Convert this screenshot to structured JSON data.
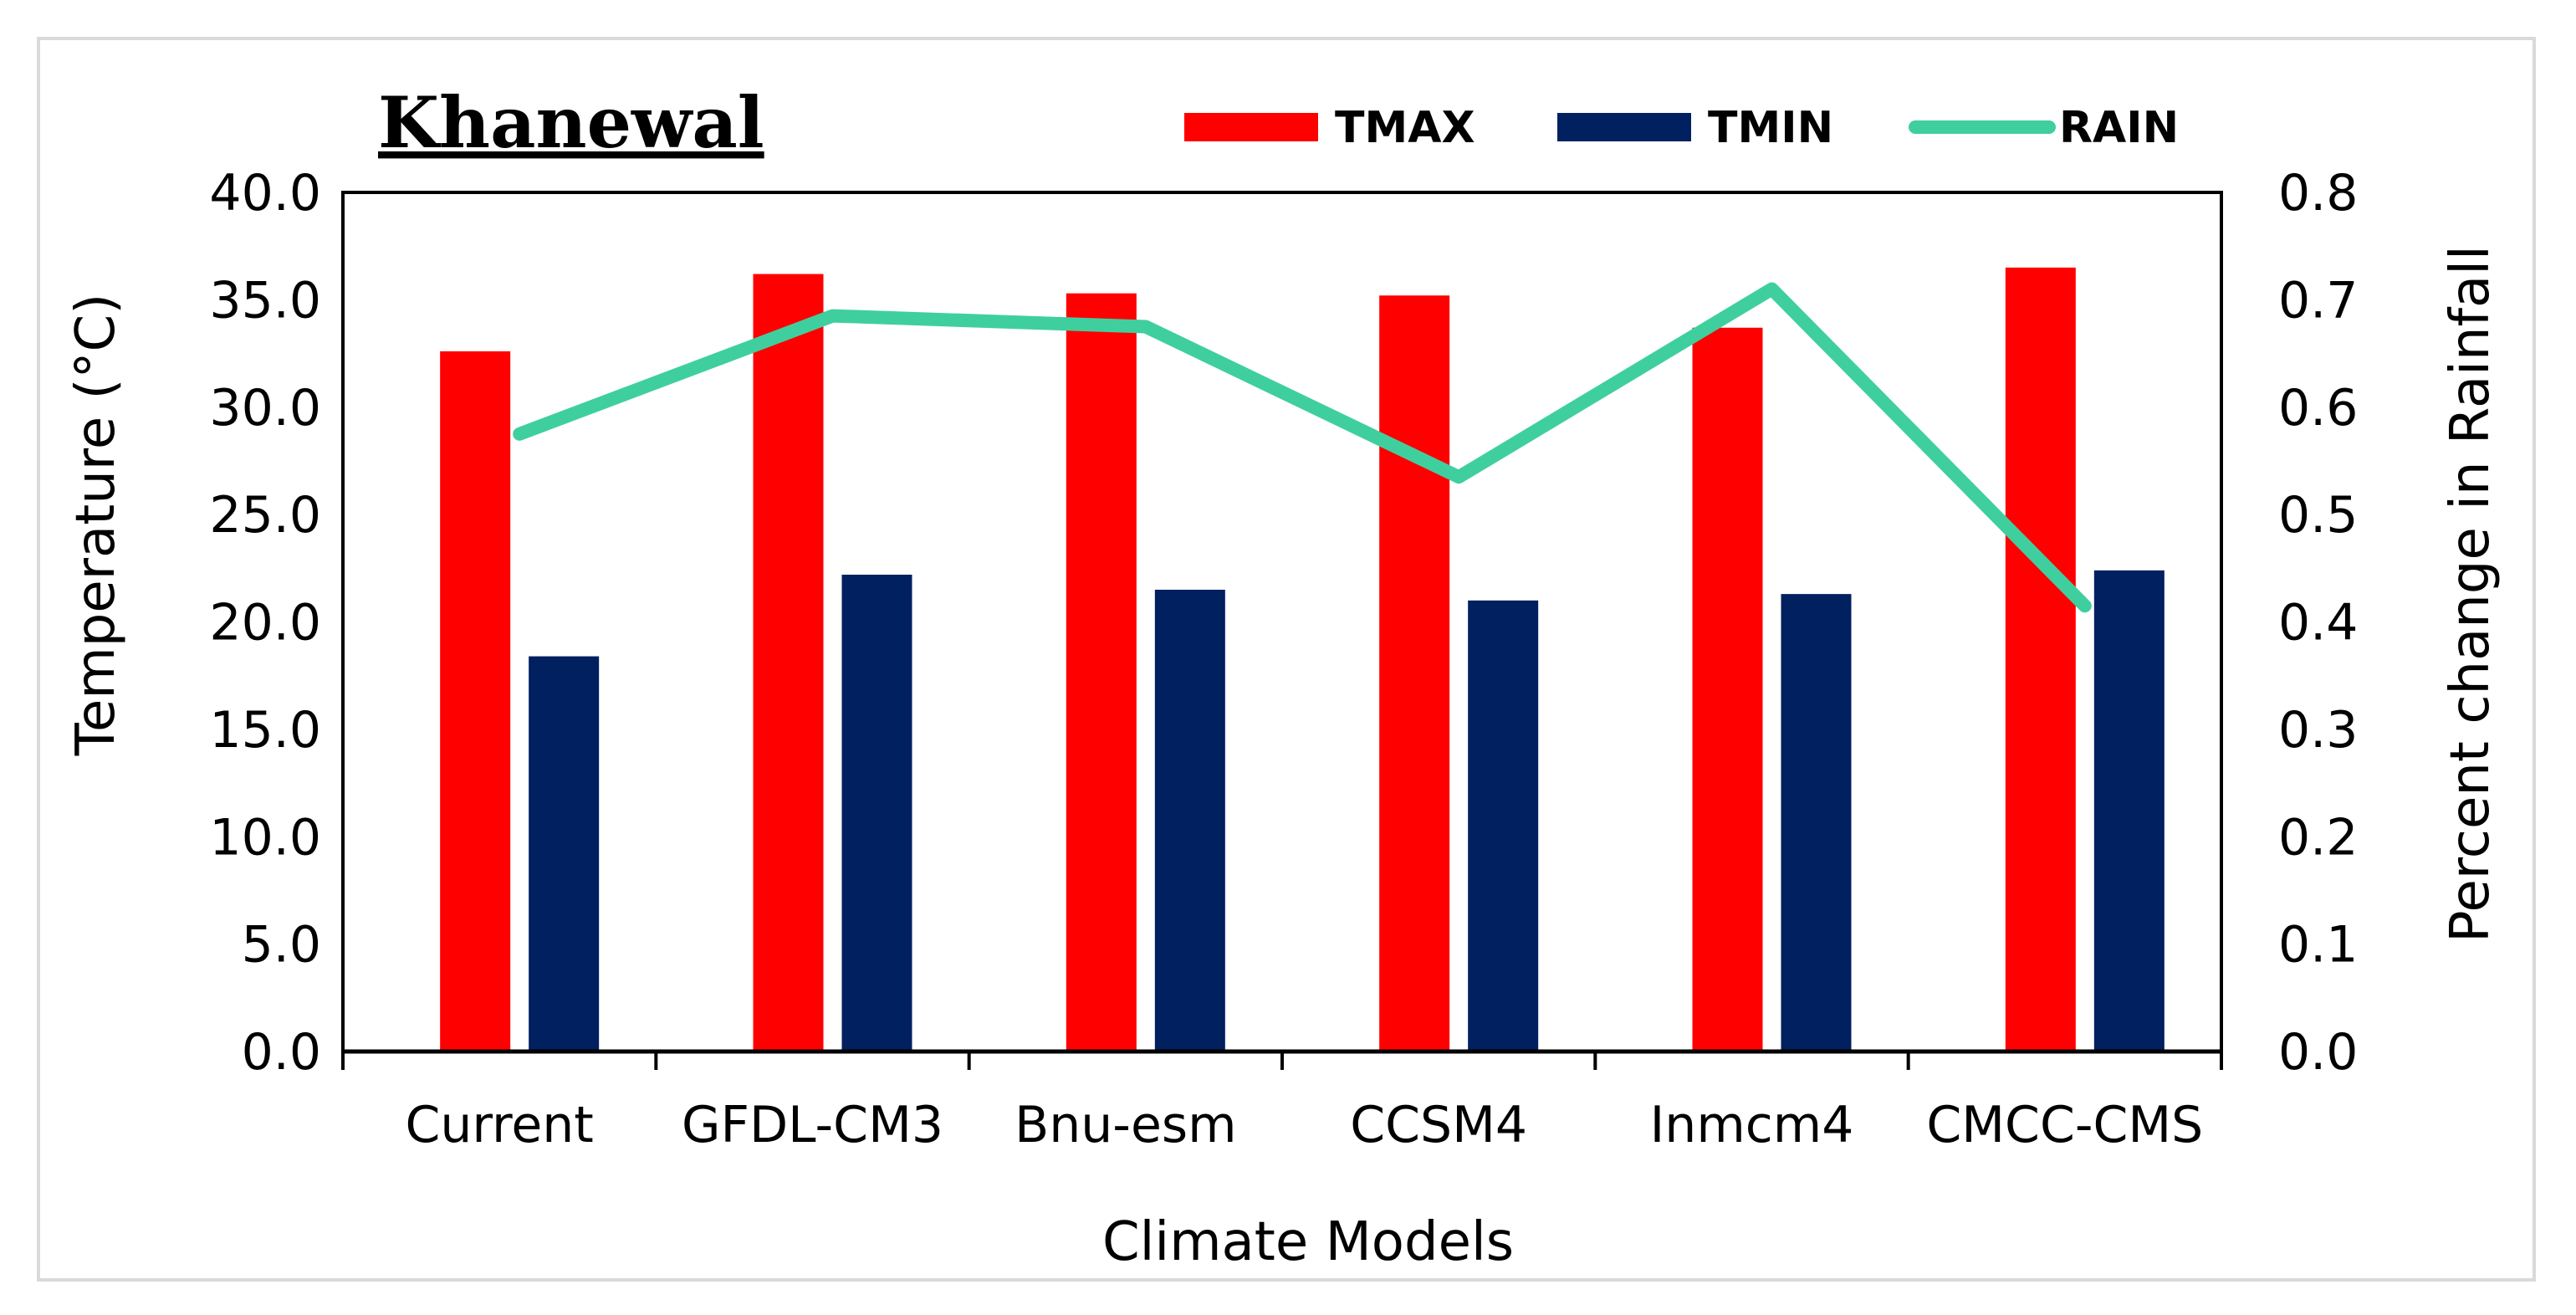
{
  "chart_data": {
    "type": "bar",
    "title": "Khanewal",
    "categories": [
      "Current",
      "GFDL-CM3",
      "Bnu-esm",
      "CCSM4",
      "Inmcm4",
      "CMCC-CMS"
    ],
    "series": [
      {
        "name": "TMAX",
        "kind": "bar",
        "axis": "left",
        "color": "#ff0000",
        "values": [
          32.6,
          36.2,
          35.3,
          35.2,
          33.7,
          36.5
        ]
      },
      {
        "name": "TMIN",
        "kind": "bar",
        "axis": "left",
        "color": "#002060",
        "values": [
          18.4,
          22.2,
          21.5,
          21.0,
          21.3,
          22.4
        ]
      },
      {
        "name": "RAIN",
        "kind": "line",
        "axis": "right",
        "color": "#3fcf9f",
        "values": [
          0.575,
          0.685,
          0.675,
          0.535,
          0.71,
          0.415
        ]
      }
    ],
    "xlabel": "Climate Models",
    "ylabel": "Temperature (°C)",
    "ylabel2": "Percent change in Rainfall",
    "ylim": [
      0,
      40
    ],
    "y2lim": [
      0,
      0.8
    ],
    "yticks": [
      "0.0",
      "5.0",
      "10.0",
      "15.0",
      "20.0",
      "25.0",
      "30.0",
      "35.0",
      "40.0"
    ],
    "y2ticks": [
      "0.0",
      "0.1",
      "0.2",
      "0.3",
      "0.4",
      "0.5",
      "0.6",
      "0.7",
      "0.8"
    ],
    "grid": false,
    "legend_position": "top-right"
  }
}
